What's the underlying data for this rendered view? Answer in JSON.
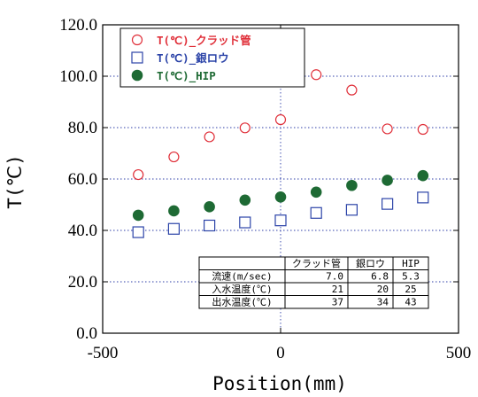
{
  "chart_data": {
    "type": "scatter",
    "xlabel": "Position(mm)",
    "ylabel": "T(℃)",
    "xlim": [
      -500,
      500
    ],
    "ylim": [
      0,
      120
    ],
    "x_ticks": [
      "-500",
      "0",
      "500"
    ],
    "y_ticks": [
      "0.0",
      "20.0",
      "40.0",
      "60.0",
      "80.0",
      "100.0",
      "120.0"
    ],
    "grid": "dotted",
    "legend_position": "top-left",
    "series": [
      {
        "name": "T(℃)_クラッド管",
        "marker": "open-circle",
        "color": "#e0303a",
        "points": [
          [
            -400,
            61.7
          ],
          [
            -300,
            68.6
          ],
          [
            -200,
            76.4
          ],
          [
            -100,
            79.9
          ],
          [
            0,
            83.1
          ],
          [
            100,
            100.6
          ],
          [
            200,
            94.6
          ],
          [
            300,
            79.5
          ],
          [
            400,
            79.3
          ]
        ]
      },
      {
        "name": "T(℃)_銀ロウ",
        "marker": "open-square",
        "color": "#2c44a8",
        "points": [
          [
            -400,
            39.3
          ],
          [
            -300,
            40.6
          ],
          [
            -200,
            41.9
          ],
          [
            -100,
            43.1
          ],
          [
            0,
            43.9
          ],
          [
            100,
            46.8
          ],
          [
            200,
            48.0
          ],
          [
            300,
            50.3
          ],
          [
            400,
            52.8
          ]
        ]
      },
      {
        "name": "T(℃)_HIP",
        "marker": "filled-circle",
        "color": "#1e6a34",
        "points": [
          [
            -400,
            45.9
          ],
          [
            -300,
            47.6
          ],
          [
            -200,
            49.2
          ],
          [
            -100,
            51.8
          ],
          [
            0,
            53.0
          ],
          [
            100,
            54.9
          ],
          [
            200,
            57.5
          ],
          [
            300,
            59.5
          ],
          [
            400,
            61.3
          ]
        ]
      }
    ],
    "table": {
      "headers": [
        "",
        "クラッド管",
        "銀ロウ",
        "HIP"
      ],
      "rows": [
        [
          "流速(m/sec)",
          "7.0",
          "6.8",
          "5.3"
        ],
        [
          "入水温度(℃)",
          "21",
          "20",
          "25"
        ],
        [
          "出水温度(℃)",
          "37",
          "34",
          "43"
        ]
      ]
    }
  }
}
